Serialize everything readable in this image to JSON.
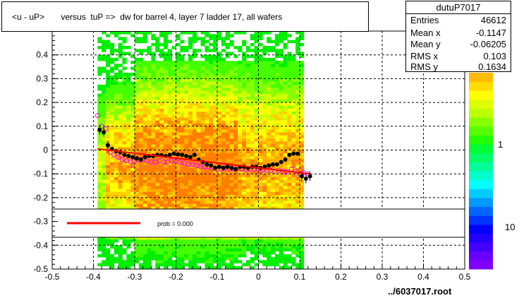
{
  "title": "<u - uP>       versus  tuP =>  dw for barrel 4, layer 7 ladder 17, all wafers",
  "footer": "../6037017.root",
  "stats": {
    "name": "dutuP7017",
    "rows": [
      {
        "label": "Entries",
        "value": "46612"
      },
      {
        "label": "Mean x",
        "value": "-0.1147"
      },
      {
        "label": "Mean y",
        "value": "-0.06205"
      },
      {
        "label": "RMS x",
        "value": "0.103"
      },
      {
        "label": "RMS y",
        "value": "0.1634"
      }
    ]
  },
  "legend": {
    "text": "prob = 0.000",
    "line_color": "#ff0000"
  },
  "colorbar": {
    "labels": [
      "1",
      "10"
    ],
    "colors": [
      "#7f00ff",
      "#6a00ff",
      "#4400ff",
      "#2200ff",
      "#0000ff",
      "#0033ff",
      "#0066ff",
      "#0099ff",
      "#00ccff",
      "#00ffff",
      "#00ffcc",
      "#00ff99",
      "#00ff66",
      "#00ff33",
      "#22ff00",
      "#55ff00",
      "#88ff00",
      "#bbff00",
      "#ddff00",
      "#ffff00",
      "#ffdd00",
      "#ffbb00"
    ]
  },
  "chart_data": {
    "type": "heatmap",
    "xlim": [
      -0.5,
      0.5
    ],
    "ylim": [
      -0.5,
      0.5
    ],
    "x_ticks": [
      "-0.5",
      "-0.4",
      "-0.3",
      "-0.2",
      "-0.1",
      "0",
      "0.1",
      "0.2",
      "0.3",
      "0.4",
      "0.5"
    ],
    "y_ticks": [
      "-0.5",
      "-0.4",
      "-0.3",
      "-0.2",
      "-0.1",
      "0",
      "0.1",
      "0.2",
      "0.3",
      "0.4"
    ],
    "x_tick_values": [
      -0.5,
      -0.4,
      -0.3,
      -0.2,
      -0.1,
      0,
      0.1,
      0.2,
      0.3,
      0.4,
      0.5
    ],
    "y_tick_values": [
      -0.5,
      -0.4,
      -0.3,
      -0.2,
      -0.1,
      0,
      0.1,
      0.2,
      0.3,
      0.4
    ],
    "grid": true,
    "density": {
      "x_range": [
        -0.39,
        0.11
      ],
      "y_range": [
        -0.5,
        0.5
      ],
      "core_center_y": -0.07,
      "core_x_range": [
        -0.3,
        -0.05
      ]
    },
    "profile_black": {
      "x": [
        -0.385,
        -0.375,
        -0.365,
        -0.355,
        -0.345,
        -0.335,
        -0.325,
        -0.315,
        -0.305,
        -0.295,
        -0.285,
        -0.275,
        -0.265,
        -0.255,
        -0.245,
        -0.235,
        -0.225,
        -0.215,
        -0.205,
        -0.195,
        -0.185,
        -0.175,
        -0.165,
        -0.155,
        -0.145,
        -0.135,
        -0.125,
        -0.115,
        -0.105,
        -0.095,
        -0.085,
        -0.075,
        -0.065,
        -0.055,
        -0.045,
        -0.035,
        -0.025,
        -0.015,
        -0.005,
        0.005,
        0.015,
        0.025,
        0.035,
        0.045,
        0.055,
        0.065,
        0.075,
        0.085,
        0.095,
        0.105,
        0.115,
        0.125
      ],
      "y": [
        0.085,
        0.075,
        0.02,
        0.005,
        -0.005,
        -0.01,
        -0.02,
        -0.025,
        -0.03,
        -0.035,
        -0.04,
        -0.03,
        -0.025,
        -0.025,
        -0.02,
        -0.022,
        -0.025,
        -0.02,
        -0.015,
        -0.018,
        -0.02,
        -0.025,
        -0.03,
        -0.02,
        -0.04,
        -0.05,
        -0.06,
        -0.065,
        -0.075,
        -0.07,
        -0.075,
        -0.07,
        -0.075,
        -0.08,
        -0.07,
        -0.07,
        -0.075,
        -0.07,
        -0.07,
        -0.075,
        -0.07,
        -0.065,
        -0.06,
        -0.06,
        -0.05,
        -0.04,
        -0.02,
        -0.015,
        -0.015,
        -0.11,
        -0.12,
        -0.11
      ]
    },
    "profile_magenta": {
      "x": [
        -0.39,
        -0.38,
        -0.37,
        -0.36,
        -0.35,
        -0.34,
        -0.33,
        -0.32,
        -0.31,
        -0.3,
        -0.29,
        -0.28,
        -0.27,
        -0.26,
        -0.25,
        -0.24,
        -0.23,
        -0.22,
        -0.21,
        -0.2,
        -0.19,
        -0.18,
        -0.17,
        -0.16,
        -0.15,
        -0.14,
        -0.13,
        -0.12,
        -0.11,
        -0.1,
        -0.09,
        -0.08,
        -0.07,
        -0.06,
        -0.05,
        -0.04,
        -0.03,
        -0.02,
        -0.01,
        0.0,
        0.01,
        0.02,
        0.03,
        0.04,
        0.05,
        0.06,
        0.07,
        0.08,
        0.09,
        0.1,
        0.11,
        0.12
      ],
      "y": [
        0.145,
        0.1,
        0.09,
        -0.01,
        -0.02,
        -0.03,
        -0.04,
        -0.045,
        -0.05,
        -0.045,
        -0.04,
        -0.04,
        -0.045,
        -0.05,
        -0.05,
        -0.045,
        -0.05,
        -0.05,
        -0.045,
        -0.045,
        -0.05,
        -0.055,
        -0.06,
        -0.06,
        -0.065,
        -0.07,
        -0.07,
        -0.07,
        -0.075,
        -0.08,
        -0.08,
        -0.075,
        -0.08,
        -0.08,
        -0.075,
        -0.08,
        -0.085,
        -0.08,
        -0.08,
        -0.08,
        -0.085,
        -0.085,
        -0.085,
        -0.09,
        -0.085,
        -0.09,
        -0.09,
        -0.08,
        -0.09,
        -0.1,
        -0.095,
        -0.1
      ]
    },
    "fit_line": {
      "x": [
        -0.39,
        0.125
      ],
      "y": [
        0.005,
        -0.1
      ],
      "color": "#ff0000"
    }
  }
}
